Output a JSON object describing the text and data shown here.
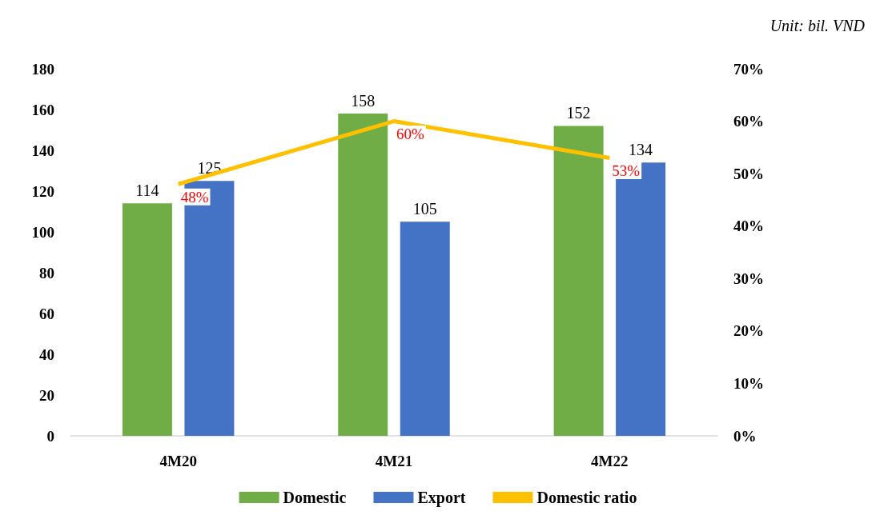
{
  "chart_data": {
    "type": "bar",
    "annotations": [
      "Unit: bil. VND"
    ],
    "categories": [
      "4M20",
      "4M21",
      "4M22"
    ],
    "series": [
      {
        "name": "Domestic",
        "color": "#70ad47",
        "values": [
          114,
          158,
          152
        ],
        "value_labels": [
          "114",
          "158",
          "152"
        ]
      },
      {
        "name": "Export",
        "color": "#4472c4",
        "values": [
          125,
          105,
          134
        ],
        "value_labels": [
          "125",
          "105",
          "134"
        ]
      },
      {
        "name": "Domestic ratio",
        "type": "line",
        "axis": "y2",
        "color": "#ffc000",
        "values": [
          48,
          60,
          53
        ],
        "value_labels": [
          "48%",
          "60%",
          "53%"
        ]
      }
    ],
    "ylim": [
      0,
      180
    ],
    "yticks": [
      0,
      20,
      40,
      60,
      80,
      100,
      120,
      140,
      160,
      180
    ],
    "y2lim": [
      0,
      70
    ],
    "y2ticks": [
      {
        "value": 0,
        "label": "0%"
      },
      {
        "value": 10,
        "label": "10%"
      },
      {
        "value": 20,
        "label": "20%"
      },
      {
        "value": 30,
        "label": "30%"
      },
      {
        "value": 40,
        "label": "40%"
      },
      {
        "value": 50,
        "label": "50%"
      },
      {
        "value": 60,
        "label": "60%"
      },
      {
        "value": 70,
        "label": "70%"
      }
    ],
    "grid": false,
    "legend": "bottom",
    "marker": "none"
  }
}
